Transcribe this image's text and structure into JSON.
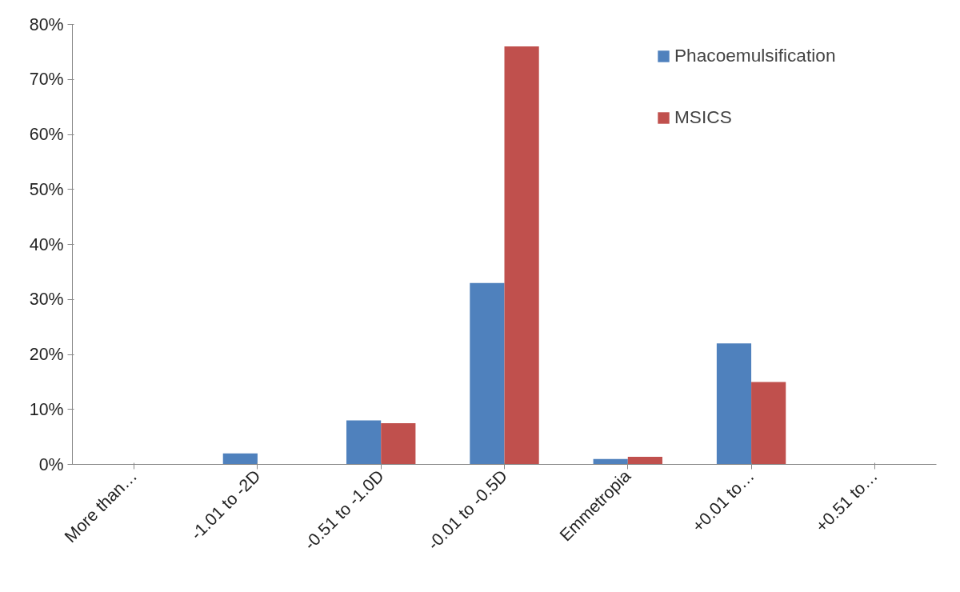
{
  "chart_data": {
    "type": "bar",
    "categories": [
      "More than…",
      "-1.01 to -2D",
      "-0.51 to -1.0D",
      "-0.01 to -0.5D",
      "Emmetropia",
      "+0.01 to…",
      "+0.51 to…"
    ],
    "series": [
      {
        "name": "Phacoemulsification",
        "color": "#4f81bd",
        "values": [
          0,
          2,
          8,
          33,
          1,
          22,
          0
        ]
      },
      {
        "name": "MSICS",
        "color": "#c0504d",
        "values": [
          0,
          0,
          7.5,
          76,
          1.4,
          15,
          0
        ]
      }
    ],
    "ylim": [
      0,
      80
    ],
    "yticks": [
      {
        "value": 0,
        "label": "0%"
      },
      {
        "value": 10,
        "label": "10%"
      },
      {
        "value": 20,
        "label": "20%"
      },
      {
        "value": 30,
        "label": "30%"
      },
      {
        "value": 40,
        "label": "40%"
      },
      {
        "value": 50,
        "label": "50%"
      },
      {
        "value": 60,
        "label": "60%"
      },
      {
        "value": 70,
        "label": "70%"
      },
      {
        "value": 80,
        "label": "80%"
      }
    ],
    "grid": false,
    "legend": "right"
  }
}
